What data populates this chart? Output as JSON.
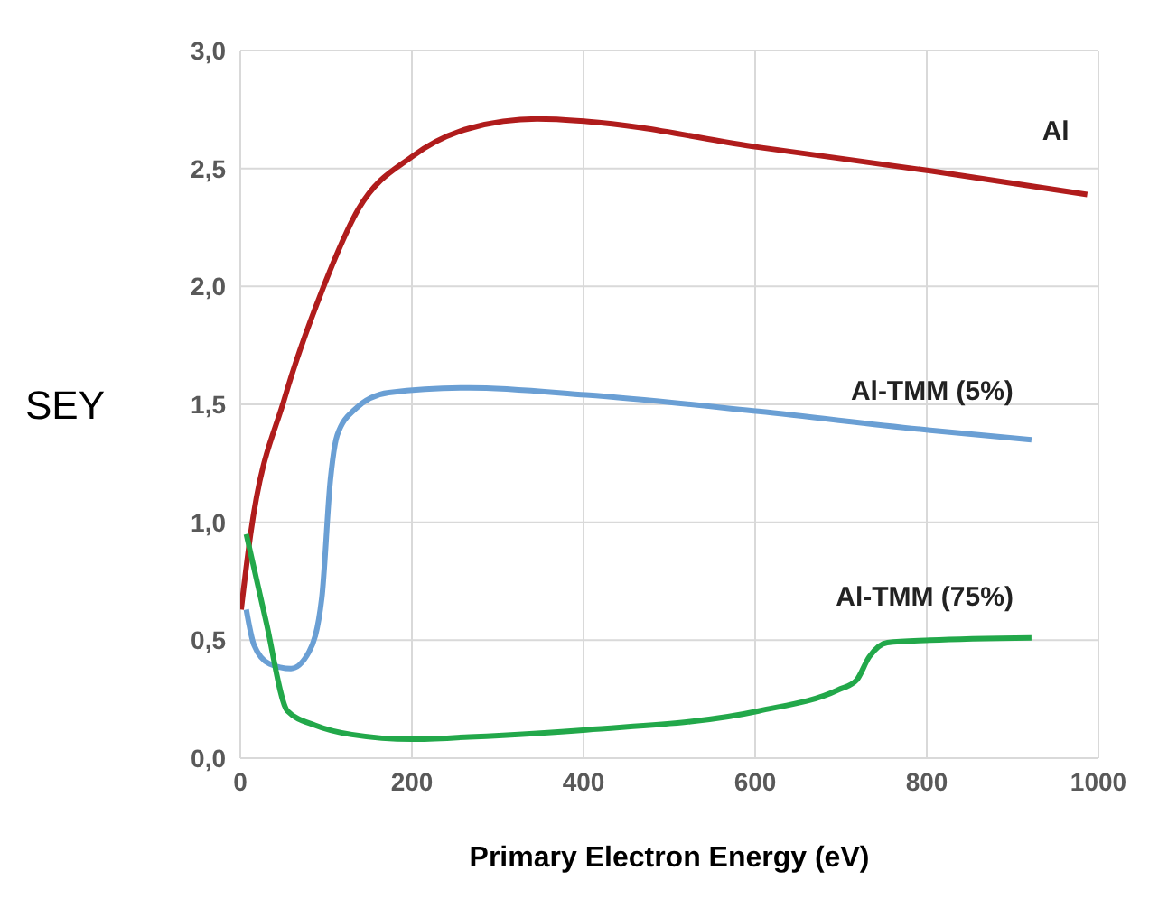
{
  "chart_data": {
    "type": "line",
    "xlabel": "Primary Electron Energy (eV)",
    "ylabel": "SEY",
    "xlim": [
      0,
      1000
    ],
    "xticks": [
      0,
      200,
      400,
      600,
      800,
      1000
    ],
    "ylim": [
      0,
      3
    ],
    "yticks": [
      {
        "value": 0,
        "label": "0,0"
      },
      {
        "value": 0.5,
        "label": "0,5"
      },
      {
        "value": 1,
        "label": "1,0"
      },
      {
        "value": 1.5,
        "label": "1,5"
      },
      {
        "value": 2,
        "label": "2,0"
      },
      {
        "value": 2.5,
        "label": "2,5"
      },
      {
        "value": 3,
        "label": "3,0"
      }
    ],
    "grid": true,
    "marker": "none",
    "line_style": "solid",
    "series": [
      {
        "name": "Al",
        "color": "#b01c1c",
        "x": [
          1,
          12,
          52,
          95,
          138,
          200,
          267,
          346,
          403,
          604,
          804,
          987
        ],
        "values": [
          0.63,
          0.95,
          1.53,
          1.98,
          2.33,
          2.55,
          2.67,
          2.71,
          2.7,
          2.59,
          2.49,
          2.39
        ]
      },
      {
        "name": "Al-TMM (5%)",
        "color": "#6a9fd4",
        "x": [
          7,
          16,
          34,
          59,
          80,
          95,
          105,
          113,
          134,
          173,
          267,
          403,
          604,
          804,
          922
        ],
        "values": [
          0.63,
          0.48,
          0.4,
          0.38,
          0.45,
          0.68,
          1.18,
          1.37,
          1.48,
          1.55,
          1.57,
          1.54,
          1.47,
          1.39,
          1.35
        ]
      },
      {
        "name": "Al-TMM (75%)",
        "color": "#22a84a",
        "x": [
          7,
          30,
          55,
          87,
          130,
          200,
          267,
          403,
          604,
          697,
          718,
          733,
          754,
          804,
          922
        ],
        "values": [
          0.95,
          0.58,
          0.2,
          0.14,
          0.1,
          0.08,
          0.09,
          0.12,
          0.2,
          0.29,
          0.33,
          0.43,
          0.49,
          0.5,
          0.51
        ]
      }
    ]
  }
}
